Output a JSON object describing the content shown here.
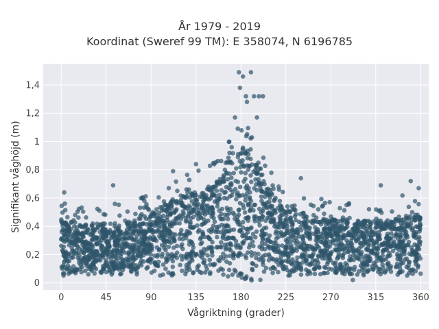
{
  "chart_data": {
    "type": "scatter",
    "title_line1": "År 1979 - 2019",
    "title_line2": "Koordinat (Sweref 99 TM): E 358074, N 6196785",
    "xlabel": "Vågriktning (grader)",
    "ylabel": "Signifikant våghöjd (m)",
    "xlim": [
      -18,
      368
    ],
    "ylim": [
      -0.05,
      1.55
    ],
    "x_ticks": [
      0,
      45,
      90,
      135,
      180,
      225,
      270,
      315,
      360
    ],
    "x_tick_labels": [
      "0",
      "45",
      "90",
      "135",
      "180",
      "225",
      "270",
      "315",
      "360"
    ],
    "y_ticks": [
      0,
      0.2,
      0.4,
      0.6,
      0.8,
      1.0,
      1.2,
      1.4
    ],
    "y_tick_labels": [
      "0",
      "0,2",
      "0,4",
      "0,6",
      "0,8",
      "1",
      "1,2",
      "1,4"
    ],
    "grid": true,
    "marker_color": "#2e5469",
    "background_color": "#e9e9f0",
    "envelope": {
      "direction": [
        0,
        20,
        45,
        70,
        90,
        110,
        135,
        150,
        165,
        175,
        180,
        185,
        195,
        205,
        215,
        225,
        240,
        270,
        300,
        330,
        345,
        360
      ],
      "typical_max": [
        0.45,
        0.42,
        0.42,
        0.43,
        0.5,
        0.58,
        0.65,
        0.7,
        0.82,
        0.95,
        1.0,
        0.98,
        0.9,
        0.72,
        0.6,
        0.55,
        0.5,
        0.45,
        0.44,
        0.45,
        0.5,
        0.5
      ]
    },
    "outliers": [
      {
        "x": 178,
        "y": 1.49
      },
      {
        "x": 190,
        "y": 1.49
      },
      {
        "x": 182,
        "y": 1.46
      },
      {
        "x": 179,
        "y": 1.38
      },
      {
        "x": 185,
        "y": 1.32
      },
      {
        "x": 193,
        "y": 1.32
      },
      {
        "x": 198,
        "y": 1.32
      },
      {
        "x": 202,
        "y": 1.32
      },
      {
        "x": 186,
        "y": 1.28
      },
      {
        "x": 174,
        "y": 1.17
      },
      {
        "x": 196,
        "y": 1.17
      },
      {
        "x": 3,
        "y": 0.64
      },
      {
        "x": 52,
        "y": 0.69
      },
      {
        "x": 112,
        "y": 0.79
      },
      {
        "x": 135,
        "y": 0.84
      },
      {
        "x": 240,
        "y": 0.74
      },
      {
        "x": 320,
        "y": 0.69
      },
      {
        "x": 350,
        "y": 0.72
      },
      {
        "x": 358,
        "y": 0.67
      },
      {
        "x": 292,
        "y": 0.02
      }
    ]
  }
}
